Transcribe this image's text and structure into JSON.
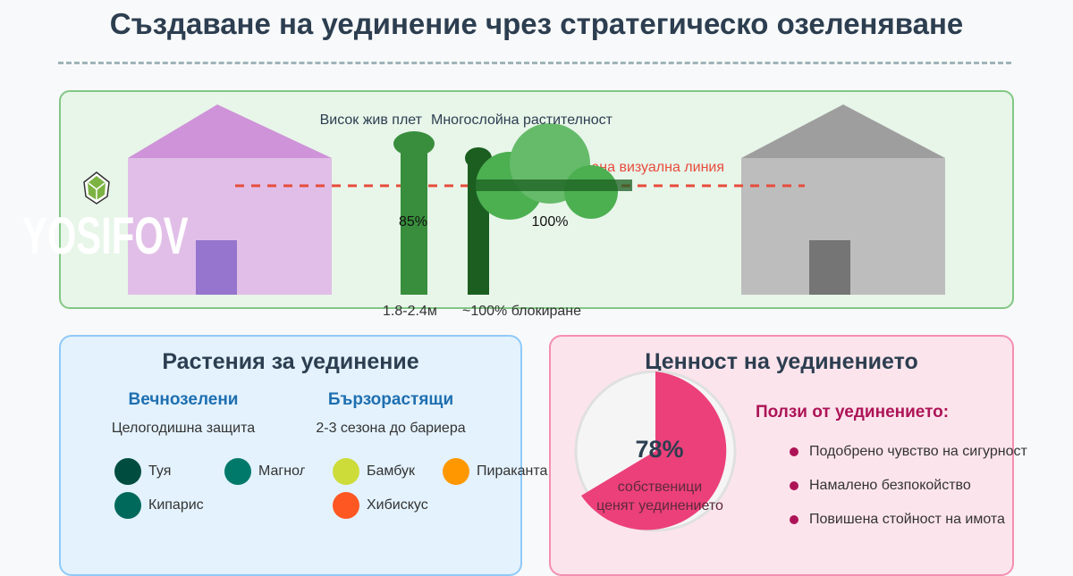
{
  "title": "Създаване на уединение чрез стратегическо озеленяване",
  "scene": {
    "hedge_label": "Висок жив плет",
    "layered_label": "Многослойна растителност",
    "hedge_pct": "85%",
    "layered_pct": "100%",
    "hedge_height": "1.8-2.4м",
    "layered_block": "~100% блокиране",
    "sightline_label": "Блокирана визуална линия"
  },
  "logo": {
    "text": "YOSIFOV"
  },
  "plants": {
    "title": "Растения за уединение",
    "groups": [
      {
        "title": "Вечнозелени",
        "desc": "Целогодишна защита",
        "items": [
          {
            "name": "Туя",
            "color": "#004d40"
          },
          {
            "name": "Магнолия",
            "color": "#00796b"
          },
          {
            "name": "Кипарис",
            "color": "#00695c"
          }
        ]
      },
      {
        "title": "Бързорастящи",
        "desc": "2-3 сезона до бариера",
        "items": [
          {
            "name": "Бамбук",
            "color": "#cddc39"
          },
          {
            "name": "Пираканта",
            "color": "#ff9800"
          },
          {
            "name": "Хибискус",
            "color": "#ff5722"
          }
        ]
      }
    ]
  },
  "value": {
    "title": "Ценност на уединението",
    "stat": "78%",
    "stat_line1": "собственици",
    "stat_line2": "ценят уединението",
    "benefits_title": "Ползи от уединението:",
    "benefits": [
      "Подобрено чувство на сигурност",
      "Намалено безпокойство",
      "Повишена стойност на имота"
    ]
  },
  "colors": {
    "accent_pink": "#ec407a",
    "benefit": "#ad1457",
    "sightline": "#e74c3c"
  }
}
